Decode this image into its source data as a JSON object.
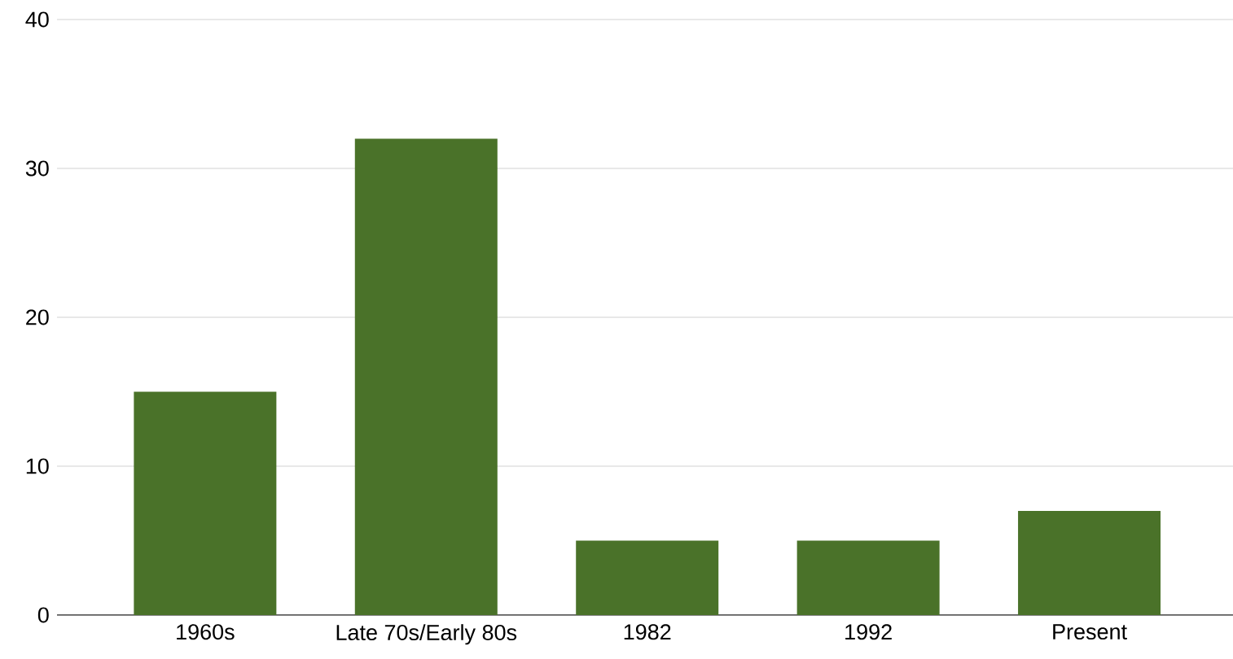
{
  "chart_data": {
    "type": "bar",
    "categories": [
      "1960s",
      "Late 70s/Early 80s",
      "1982",
      "1992",
      "Present"
    ],
    "values": [
      15,
      32,
      5,
      5,
      7
    ],
    "color": "#4a7229",
    "ylim": [
      0,
      40
    ],
    "yticks": [
      0,
      10,
      20,
      30,
      40
    ],
    "grid": "y"
  }
}
